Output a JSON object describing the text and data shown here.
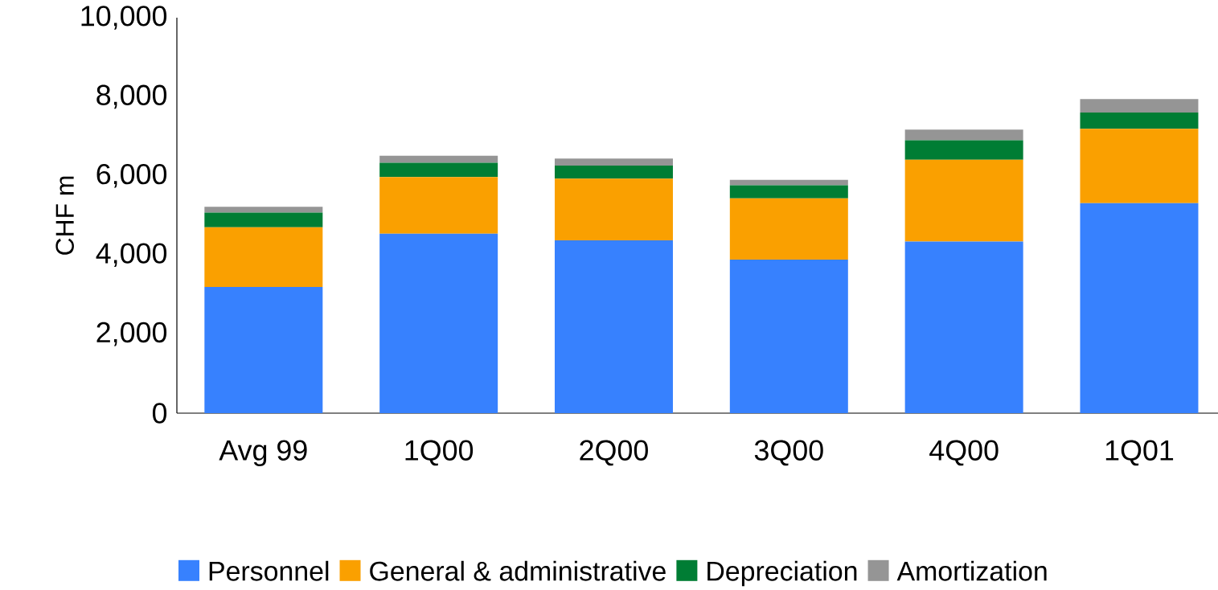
{
  "chart_data": {
    "type": "bar",
    "stacked": true,
    "ylabel": "CHF m",
    "categories": [
      "Avg 99",
      "1Q00",
      "2Q00",
      "3Q00",
      "4Q00",
      "1Q01"
    ],
    "series": [
      {
        "name": "Personnel",
        "color": "#3781fe",
        "values": [
          3190,
          4540,
          4370,
          3880,
          4340,
          5310
        ]
      },
      {
        "name": "General & administrative",
        "color": "#faa000",
        "values": [
          1510,
          1430,
          1560,
          1550,
          2070,
          1880
        ]
      },
      {
        "name": "Depreciation",
        "color": "#007d34",
        "values": [
          370,
          360,
          330,
          330,
          490,
          410
        ]
      },
      {
        "name": "Amortization",
        "color": "#959595",
        "values": [
          150,
          180,
          180,
          140,
          270,
          340
        ]
      }
    ],
    "ylim": [
      0,
      10000
    ],
    "yticks": [
      {
        "value": 0,
        "label": "0"
      },
      {
        "value": 2000,
        "label": "2,000"
      },
      {
        "value": 4000,
        "label": "4,000"
      },
      {
        "value": 6000,
        "label": "6,000"
      },
      {
        "value": 8000,
        "label": "8,000"
      },
      {
        "value": 10000,
        "label": "10,000"
      }
    ],
    "legend": "bottom",
    "grid": false
  }
}
